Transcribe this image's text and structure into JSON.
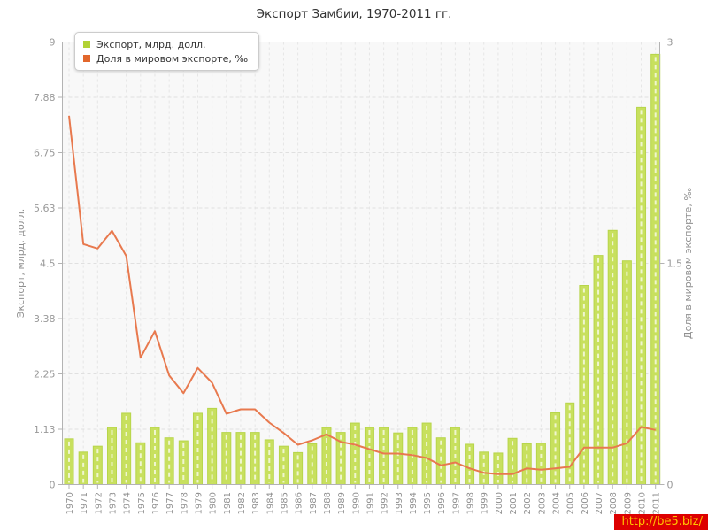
{
  "title": "Экспорт Замбии, 1970-2011 гг.",
  "legend": [
    {
      "label": "Экспорт, млрд. долл.",
      "color": "#b2d235"
    },
    {
      "label": "Доля в мировом экспорте, ‰",
      "color": "#e2672c"
    }
  ],
  "watermark": "http://be5.biz/",
  "colors": {
    "bar_fill": "#c8e05e",
    "bar_stroke": "#b7d54a",
    "line": "#e8794e",
    "plot_background": "#f8f8f8",
    "gridline": "#e0e0e0",
    "vertical_gridline": "#e6e6e6",
    "axis": "#b3b3b3",
    "tick_text": "#999999"
  },
  "chart_data": {
    "type": "bar",
    "title": "Экспорт Замбии, 1970-2011 гг.",
    "categories": [
      1970,
      1971,
      1972,
      1973,
      1974,
      1975,
      1976,
      1977,
      1978,
      1979,
      1980,
      1981,
      1982,
      1983,
      1984,
      1985,
      1986,
      1987,
      1988,
      1989,
      1990,
      1991,
      1992,
      1993,
      1994,
      1995,
      1996,
      1997,
      1998,
      1999,
      2000,
      2001,
      2002,
      2003,
      2004,
      2005,
      2006,
      2007,
      2008,
      2009,
      2010,
      2011
    ],
    "series": [
      {
        "name": "Экспорт, млрд. долл.",
        "type": "bar",
        "axis": "left",
        "color": "#c8e05e",
        "values": [
          0.93,
          0.66,
          0.78,
          1.16,
          1.45,
          0.85,
          1.16,
          0.95,
          0.89,
          1.45,
          1.55,
          1.06,
          1.06,
          1.06,
          0.91,
          0.78,
          0.65,
          0.83,
          1.16,
          1.06,
          1.25,
          1.16,
          1.16,
          1.05,
          1.16,
          1.25,
          0.95,
          1.16,
          0.82,
          0.66,
          0.64,
          0.94,
          0.83,
          0.84,
          1.46,
          1.66,
          4.05,
          4.66,
          5.17,
          4.55,
          7.67,
          8.75
        ]
      },
      {
        "name": "Доля в мировом экспорте, ‰",
        "type": "line",
        "axis": "right",
        "color": "#e8794e",
        "values": [
          2.5,
          1.63,
          1.6,
          1.72,
          1.55,
          0.86,
          1.04,
          0.74,
          0.62,
          0.79,
          0.69,
          0.48,
          0.51,
          0.51,
          0.42,
          0.35,
          0.27,
          0.3,
          0.34,
          0.29,
          0.27,
          0.24,
          0.21,
          0.21,
          0.2,
          0.18,
          0.13,
          0.15,
          0.11,
          0.08,
          0.07,
          0.07,
          0.11,
          0.1,
          0.11,
          0.12,
          0.25,
          0.25,
          0.25,
          0.28,
          0.39,
          0.37
        ]
      }
    ],
    "left_axis": {
      "title": "Экспорт, млрд. долл.",
      "min": 0,
      "max": 9,
      "tick_labels": [
        "0",
        "1.13",
        "2.25",
        "3.38",
        "4.5",
        "5.63",
        "6.75",
        "7.88",
        "9"
      ],
      "tick_values": [
        0,
        1.125,
        2.25,
        3.375,
        4.5,
        5.625,
        6.75,
        7.875,
        9
      ]
    },
    "right_axis": {
      "title": "Доля в мировом экспорте, ‰",
      "min": 0,
      "max": 3,
      "tick_labels": [
        "0",
        "1.5",
        "3"
      ],
      "tick_values": [
        0,
        1.5,
        3
      ]
    },
    "grid": true,
    "legend_position": "top-left"
  }
}
